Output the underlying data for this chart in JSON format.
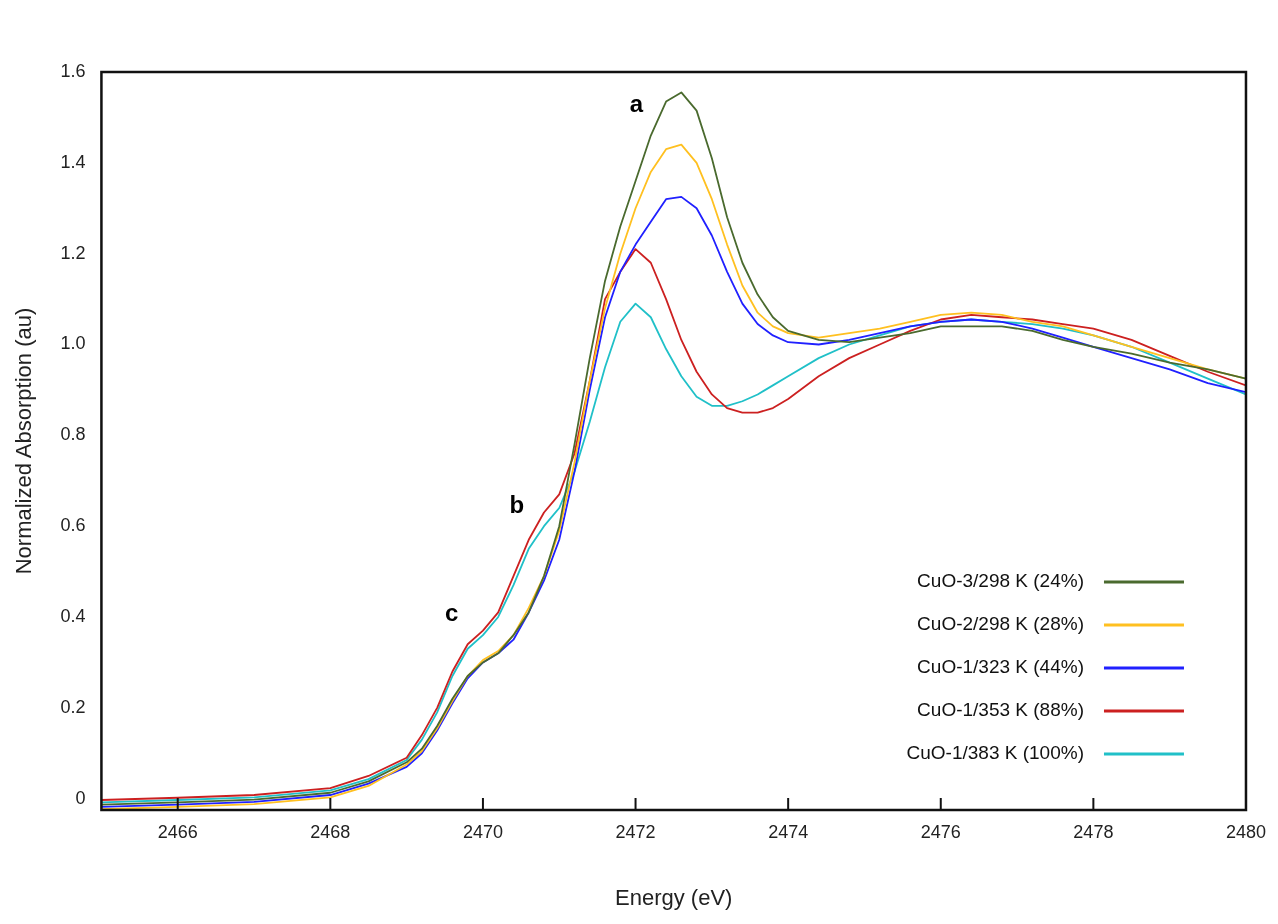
{
  "chart_data": {
    "type": "line",
    "xlabel": "Energy (eV)",
    "ylabel": "Normalized Absorption (au)",
    "x": [
      2465,
      2466,
      2467,
      2468,
      2468.5,
      2469,
      2469.2,
      2469.4,
      2469.6,
      2469.8,
      2470,
      2470.2,
      2470.4,
      2470.6,
      2470.8,
      2471,
      2471.2,
      2471.4,
      2471.6,
      2471.8,
      2472,
      2472.2,
      2472.4,
      2472.6,
      2472.8,
      2473,
      2473.2,
      2473.4,
      2473.6,
      2473.8,
      2474,
      2474.4,
      2474.8,
      2475.2,
      2475.6,
      2476,
      2476.4,
      2476.8,
      2477.2,
      2477.6,
      2478,
      2478.5,
      2479,
      2479.5,
      2480
    ],
    "series": [
      {
        "name": "CuO-3/298 K (24%)",
        "color": "#4a6a2e",
        "values": [
          -0.013,
          -0.008,
          -0.002,
          0.013,
          0.038,
          0.08,
          0.11,
          0.16,
          0.22,
          0.27,
          0.3,
          0.32,
          0.36,
          0.41,
          0.49,
          0.6,
          0.78,
          0.97,
          1.14,
          1.26,
          1.36,
          1.46,
          1.535,
          1.555,
          1.515,
          1.41,
          1.28,
          1.18,
          1.11,
          1.06,
          1.03,
          1.01,
          1.005,
          1.015,
          1.025,
          1.04,
          1.04,
          1.04,
          1.03,
          1.01,
          0.995,
          0.98,
          0.96,
          0.945,
          0.925
        ]
      },
      {
        "name": "CuO-2/298 K (28%)",
        "color": "#ffc020",
        "values": [
          -0.023,
          -0.018,
          -0.012,
          0.003,
          0.028,
          0.075,
          0.105,
          0.155,
          0.215,
          0.27,
          0.305,
          0.325,
          0.36,
          0.42,
          0.49,
          0.59,
          0.74,
          0.92,
          1.08,
          1.2,
          1.3,
          1.38,
          1.43,
          1.44,
          1.4,
          1.32,
          1.22,
          1.13,
          1.07,
          1.04,
          1.025,
          1.015,
          1.025,
          1.035,
          1.05,
          1.065,
          1.07,
          1.065,
          1.05,
          1.04,
          1.02,
          0.995,
          0.97,
          0.945,
          0.925
        ]
      },
      {
        "name": "CuO-1/323 K (44%)",
        "color": "#2020ff",
        "values": [
          -0.018,
          -0.013,
          -0.007,
          0.008,
          0.033,
          0.07,
          0.1,
          0.15,
          0.21,
          0.265,
          0.3,
          0.32,
          0.35,
          0.41,
          0.48,
          0.57,
          0.72,
          0.9,
          1.06,
          1.16,
          1.22,
          1.27,
          1.32,
          1.325,
          1.3,
          1.24,
          1.16,
          1.09,
          1.045,
          1.02,
          1.005,
          1.0,
          1.01,
          1.025,
          1.04,
          1.05,
          1.055,
          1.05,
          1.035,
          1.015,
          0.995,
          0.97,
          0.945,
          0.915,
          0.895
        ]
      },
      {
        "name": "CuO-1/353 K (88%)",
        "color": "#cc2020",
        "values": [
          -0.003,
          0.002,
          0.008,
          0.023,
          0.05,
          0.09,
          0.14,
          0.2,
          0.28,
          0.34,
          0.37,
          0.41,
          0.49,
          0.57,
          0.63,
          0.67,
          0.76,
          0.92,
          1.1,
          1.16,
          1.21,
          1.18,
          1.1,
          1.01,
          0.94,
          0.89,
          0.86,
          0.85,
          0.85,
          0.86,
          0.88,
          0.93,
          0.97,
          1.0,
          1.03,
          1.055,
          1.065,
          1.06,
          1.055,
          1.045,
          1.035,
          1.01,
          0.975,
          0.94,
          0.91
        ]
      },
      {
        "name": "CuO-1/383 K (100%)",
        "color": "#20c0c8",
        "values": [
          -0.008,
          -0.003,
          0.003,
          0.018,
          0.043,
          0.085,
          0.13,
          0.19,
          0.27,
          0.33,
          0.36,
          0.4,
          0.47,
          0.55,
          0.6,
          0.64,
          0.72,
          0.83,
          0.95,
          1.05,
          1.09,
          1.06,
          0.99,
          0.93,
          0.885,
          0.865,
          0.865,
          0.875,
          0.89,
          0.91,
          0.93,
          0.97,
          1.0,
          1.02,
          1.04,
          1.05,
          1.055,
          1.05,
          1.045,
          1.035,
          1.02,
          0.995,
          0.96,
          0.925,
          0.89
        ]
      }
    ],
    "xlim": [
      2465,
      2480
    ],
    "xticks": [
      2466,
      2468,
      2470,
      2472,
      2474,
      2476,
      2478,
      2480
    ],
    "ylim": [
      -0.025,
      1.6
    ],
    "yticks": [
      0,
      0.2,
      0.4,
      0.6,
      0.8,
      {
        "value": 1,
        "label": "1.0"
      },
      1.2,
      1.4,
      1.6
    ],
    "annotations": [
      "a",
      "b",
      "c"
    ],
    "legend": "bottom right",
    "grid": false,
    "marker": "none",
    "line_style": "solid"
  }
}
